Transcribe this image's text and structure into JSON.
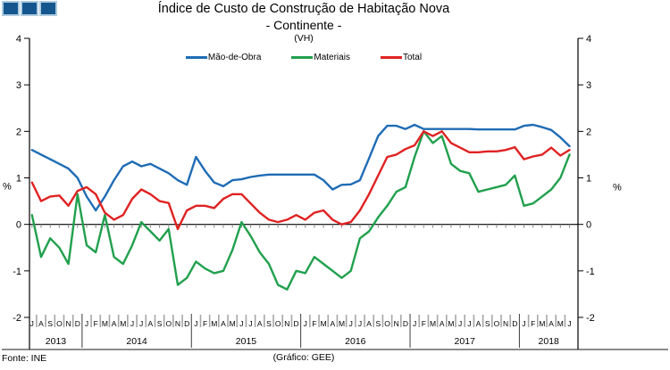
{
  "logo": {
    "square_count": 3,
    "fill": "#15568F",
    "border": "#AECBDF"
  },
  "title": {
    "line1": "Índice de Custo de Construção de Habitação Nova",
    "line2": "- Continente -",
    "subtitle": "(VH)"
  },
  "footer": {
    "source": "Fonte: INE",
    "credit": "(Gráfico: GEE)"
  },
  "axis": {
    "unit_label": "%",
    "y_ticks": [
      4,
      3,
      2,
      1,
      0,
      -1,
      -2
    ]
  },
  "chart_data": {
    "type": "line",
    "title": "Índice de Custo de Construção de Habitação Nova - Continente - (VH)",
    "ylabel": "%",
    "ylim": [
      -2,
      4
    ],
    "grid": false,
    "legend_position": "top-center",
    "x_groups": [
      {
        "year": "2013",
        "months": [
          "J",
          "A",
          "S",
          "O",
          "N",
          "D"
        ]
      },
      {
        "year": "2014",
        "months": [
          "J",
          "F",
          "M",
          "A",
          "M",
          "J",
          "J",
          "A",
          "S",
          "O",
          "N",
          "D"
        ]
      },
      {
        "year": "2015",
        "months": [
          "J",
          "F",
          "M",
          "A",
          "M",
          "J",
          "J",
          "A",
          "S",
          "O",
          "N",
          "D"
        ]
      },
      {
        "year": "2016",
        "months": [
          "J",
          "F",
          "M",
          "A",
          "M",
          "J",
          "J",
          "A",
          "S",
          "O",
          "N",
          "D"
        ]
      },
      {
        "year": "2017",
        "months": [
          "J",
          "F",
          "M",
          "A",
          "M",
          "J",
          "J",
          "A",
          "S",
          "O",
          "N",
          "D"
        ]
      },
      {
        "year": "2018",
        "months": [
          "J",
          "F",
          "M",
          "A",
          "M",
          "J"
        ]
      }
    ],
    "series": [
      {
        "name": "Mão-de-Obra",
        "color": "#1F6CB5",
        "values": [
          1.6,
          1.5,
          1.4,
          1.3,
          1.2,
          1.0,
          0.6,
          0.3,
          0.6,
          0.95,
          1.25,
          1.35,
          1.25,
          1.3,
          1.2,
          1.1,
          0.95,
          0.85,
          1.45,
          1.15,
          0.9,
          0.82,
          0.95,
          0.97,
          1.02,
          1.05,
          1.07,
          1.07,
          1.07,
          1.07,
          1.07,
          1.07,
          0.95,
          0.75,
          0.85,
          0.86,
          0.95,
          1.42,
          1.9,
          2.12,
          2.12,
          2.05,
          2.14,
          2.05,
          2.05,
          2.05,
          2.05,
          2.05,
          2.05,
          2.04,
          2.04,
          2.04,
          2.04,
          2.04,
          2.12,
          2.14,
          2.09,
          2.03,
          1.87,
          1.68
        ]
      },
      {
        "name": "Materiais",
        "color": "#21A04D",
        "values": [
          0.2,
          -0.7,
          -0.3,
          -0.5,
          -0.85,
          0.65,
          -0.45,
          -0.6,
          0.2,
          -0.7,
          -0.85,
          -0.45,
          0.05,
          -0.15,
          -0.35,
          -0.1,
          -1.3,
          -1.15,
          -0.8,
          -0.95,
          -1.05,
          -1.0,
          -0.55,
          0.05,
          -0.25,
          -0.6,
          -0.85,
          -1.3,
          -1.4,
          -1.0,
          -1.05,
          -0.7,
          -0.85,
          -1.0,
          -1.15,
          -1.0,
          -0.3,
          -0.15,
          0.15,
          0.4,
          0.7,
          0.8,
          1.45,
          2.0,
          1.75,
          1.9,
          1.3,
          1.15,
          1.1,
          0.7,
          0.75,
          0.8,
          0.85,
          1.05,
          0.4,
          0.45,
          0.6,
          0.75,
          1.0,
          1.5
        ]
      },
      {
        "name": "Total",
        "color": "#E02222",
        "values": [
          0.9,
          0.5,
          0.6,
          0.62,
          0.4,
          0.72,
          0.8,
          0.65,
          0.25,
          0.1,
          0.2,
          0.55,
          0.75,
          0.65,
          0.5,
          0.46,
          -0.1,
          0.3,
          0.4,
          0.4,
          0.35,
          0.55,
          0.65,
          0.65,
          0.45,
          0.25,
          0.1,
          0.05,
          0.1,
          0.2,
          0.1,
          0.25,
          0.3,
          0.1,
          0.0,
          0.05,
          0.3,
          0.65,
          1.05,
          1.45,
          1.5,
          1.62,
          1.7,
          2.0,
          1.9,
          2.0,
          1.75,
          1.65,
          1.55,
          1.55,
          1.57,
          1.57,
          1.6,
          1.66,
          1.4,
          1.46,
          1.5,
          1.65,
          1.48,
          1.6
        ]
      }
    ]
  }
}
